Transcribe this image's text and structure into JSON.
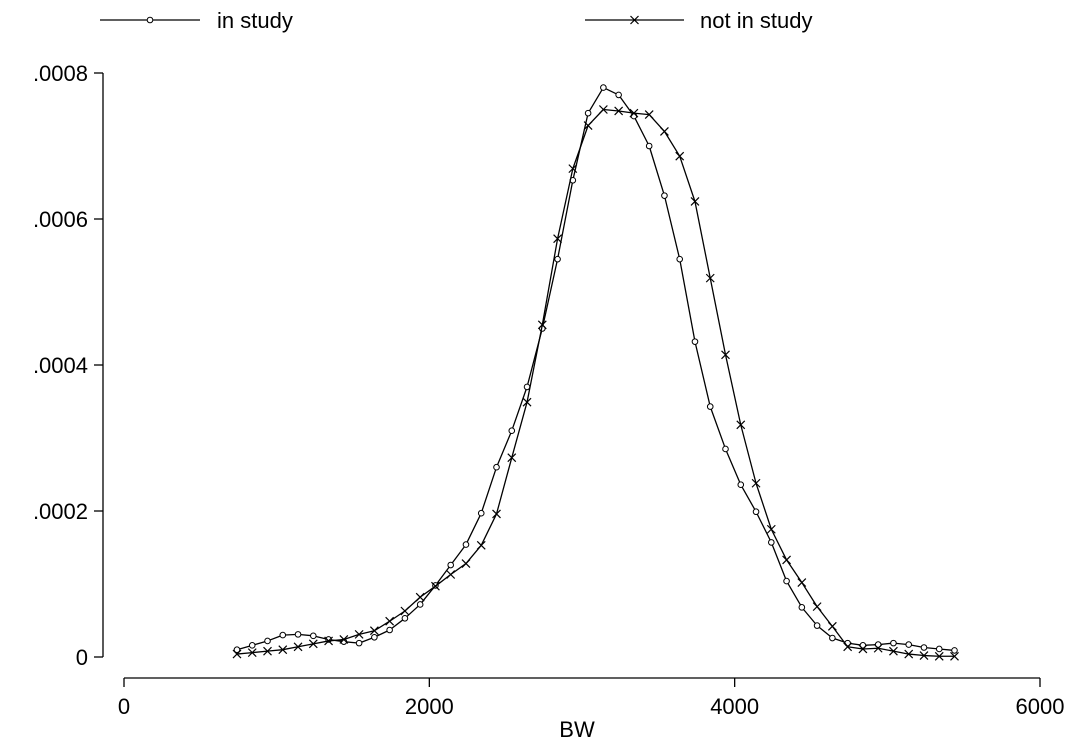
{
  "chart_data": {
    "type": "line",
    "title": "",
    "xlabel": "BW",
    "ylabel": "",
    "xlim": [
      0,
      6000
    ],
    "ylim": [
      0,
      0.0008
    ],
    "xticks": [
      0,
      2000,
      4000,
      6000
    ],
    "xtick_labels": [
      "0",
      "2000",
      "4000",
      "6000"
    ],
    "yticks": [
      0,
      0.0002,
      0.0004,
      0.0006,
      0.0008
    ],
    "ytick_labels": [
      "0",
      ".0002",
      ".0004",
      ".0006",
      ".0008"
    ],
    "grid": false,
    "legend_position": "top",
    "x": [
      740,
      840,
      940,
      1040,
      1140,
      1240,
      1340,
      1440,
      1540,
      1640,
      1740,
      1840,
      1940,
      2040,
      2140,
      2240,
      2340,
      2440,
      2540,
      2640,
      2740,
      2840,
      2940,
      3040,
      3140,
      3240,
      3340,
      3440,
      3540,
      3640,
      3740,
      3840,
      3940,
      4040,
      4140,
      4240,
      4340,
      4440,
      4540,
      4640,
      4740,
      4840,
      4940,
      5040,
      5140,
      5240,
      5340,
      5440
    ],
    "series": [
      {
        "name": "in study",
        "marker": "circle",
        "values": [
          1e-05,
          1.6e-05,
          2.2e-05,
          3e-05,
          3.1e-05,
          2.9e-05,
          2.4e-05,
          2.1e-05,
          1.9e-05,
          2.7e-05,
          3.7e-05,
          5.3e-05,
          7.2e-05,
          9.8e-05,
          0.000126,
          0.000154,
          0.000197,
          0.00026,
          0.00031,
          0.00037,
          0.00045,
          0.000545,
          0.000653,
          0.000745,
          0.00078,
          0.00077,
          0.000741,
          0.0007,
          0.000632,
          0.000545,
          0.000432,
          0.000343,
          0.000285,
          0.000236,
          0.000199,
          0.000157,
          0.000104,
          6.8e-05,
          4.3e-05,
          2.6e-05,
          1.9e-05,
          1.6e-05,
          1.7e-05,
          1.9e-05,
          1.7e-05,
          1.3e-05,
          1.1e-05,
          9e-06
        ]
      },
      {
        "name": "not in study",
        "marker": "x",
        "values": [
          4e-06,
          6e-06,
          8e-06,
          1e-05,
          1.4e-05,
          1.8e-05,
          2.2e-05,
          2.4e-05,
          3.1e-05,
          3.6e-05,
          4.9e-05,
          6.3e-05,
          8.2e-05,
          9.7e-05,
          0.000113,
          0.000128,
          0.000153,
          0.000196,
          0.000273,
          0.000349,
          0.000455,
          0.000573,
          0.000669,
          0.000728,
          0.00075,
          0.000748,
          0.000745,
          0.000743,
          0.00072,
          0.000686,
          0.000624,
          0.000519,
          0.000414,
          0.000318,
          0.000238,
          0.000175,
          0.000133,
          0.000102,
          6.9e-05,
          4.2e-05,
          1.4e-05,
          1.1e-05,
          1.2e-05,
          8e-06,
          4e-06,
          2e-06,
          1e-06,
          1e-06
        ]
      }
    ]
  }
}
